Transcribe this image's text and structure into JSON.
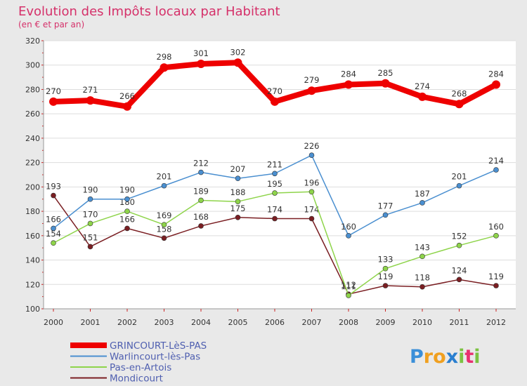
{
  "chart_data": {
    "type": "line",
    "title": "Evolution des Impôts locaux par Habitant",
    "subtitle": "(en € et par an)",
    "x": [
      "2000",
      "2001",
      "2002",
      "2003",
      "2004",
      "2005",
      "2006",
      "2007",
      "2008",
      "2009",
      "2010",
      "2011",
      "2012"
    ],
    "ylim": [
      100,
      320
    ],
    "yticks": [
      100,
      120,
      140,
      160,
      180,
      200,
      220,
      240,
      260,
      280,
      300,
      320
    ],
    "grid": true,
    "legend_position": "bottom-left",
    "series": [
      {
        "name": "GRINCOURT-LèS-PAS",
        "color": "#ee0000",
        "values": [
          270,
          271,
          266,
          298,
          301,
          302,
          270,
          279,
          284,
          285,
          274,
          268,
          284
        ]
      },
      {
        "name": "Warlincourt-lès-Pas",
        "color": "#4a8fd0",
        "values": [
          166,
          190,
          190,
          201,
          212,
          207,
          211,
          226,
          160,
          177,
          187,
          201,
          214
        ]
      },
      {
        "name": "Pas-en-Artois",
        "color": "#8ed44a",
        "values": [
          154,
          170,
          180,
          169,
          189,
          188,
          195,
          196,
          111,
          133,
          143,
          152,
          160
        ]
      },
      {
        "name": "Mondicourt",
        "color": "#7a1e22",
        "values": [
          193,
          151,
          166,
          158,
          168,
          175,
          174,
          174,
          112,
          119,
          118,
          124,
          119
        ]
      }
    ]
  },
  "logo": {
    "text": "Proxiti"
  },
  "colors": {
    "background": "#e9e9e9",
    "plot_bg": "#ffffff",
    "grid": "#dddddd",
    "title": "#d5316a",
    "legend_text": "#4f5fb0"
  }
}
